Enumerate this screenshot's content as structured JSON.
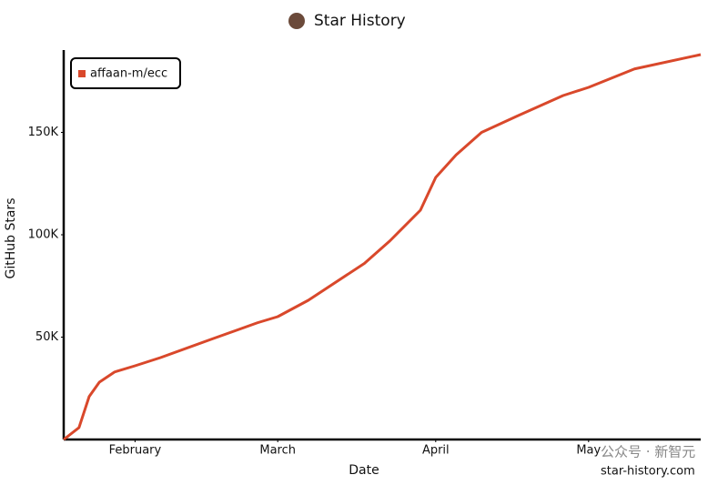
{
  "chart_data": {
    "type": "line",
    "title": "Star History",
    "xlabel": "Date",
    "ylabel": "GitHub Stars",
    "x": [
      0,
      3,
      5,
      7,
      10,
      14,
      19,
      29,
      38,
      42,
      48,
      59,
      64,
      70,
      73,
      77,
      82,
      89,
      98,
      103,
      112,
      125
    ],
    "series": [
      {
        "name": "affaan-m/ecc",
        "color": "#d9482b",
        "values": [
          0,
          5800,
          21000,
          28000,
          33000,
          36000,
          40000,
          49000,
          57000,
          60000,
          68000,
          86000,
          97000,
          112000,
          128000,
          139000,
          150000,
          158000,
          168000,
          172000,
          181000,
          188000
        ]
      }
    ],
    "xlim": [
      0,
      125
    ],
    "xticks": [
      {
        "value": 14,
        "label": "February"
      },
      {
        "value": 42,
        "label": "March"
      },
      {
        "value": 73,
        "label": "April"
      },
      {
        "value": 103,
        "label": "May"
      }
    ],
    "ylim": [
      0,
      188000
    ],
    "yticks": [
      {
        "value": 50000,
        "label": "50K"
      },
      {
        "value": 100000,
        "label": "100K"
      },
      {
        "value": 150000,
        "label": "150K"
      }
    ],
    "legend": "top-left",
    "annotations": [
      "公众号 · 新智元",
      "star-history.com"
    ]
  }
}
